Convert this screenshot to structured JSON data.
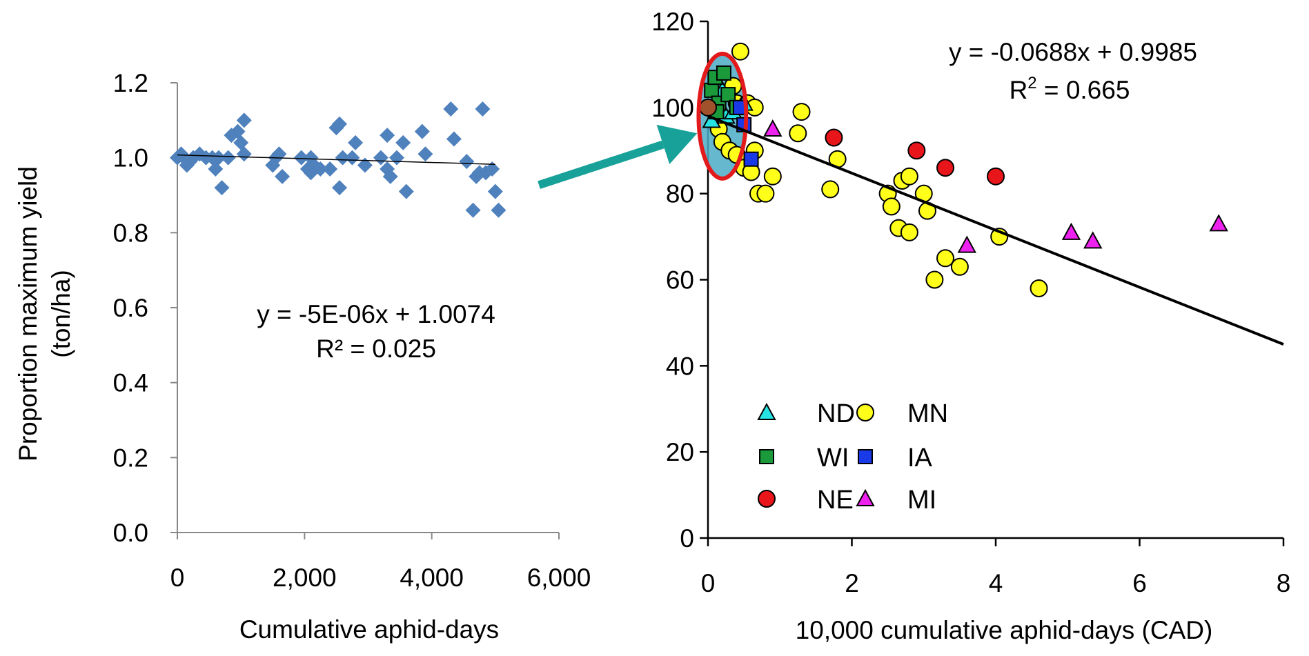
{
  "chart_data": [
    {
      "type": "scatter",
      "title": "",
      "ylabel": "Proportion maximum yield (ton/ha)",
      "ylabel_lines": [
        "Proportion maximum yield",
        "(ton/ha)"
      ],
      "xlabel": "Cumulative aphid-days",
      "xlim": [
        0,
        6000
      ],
      "ylim": [
        0,
        1.2
      ],
      "x_ticks": [
        0,
        2000,
        4000,
        6000
      ],
      "x_tick_labels": [
        "0",
        "2,000",
        "4,000",
        "6,000"
      ],
      "y_ticks": [
        0,
        0.2,
        0.4,
        0.6,
        0.8,
        1.0,
        1.2
      ],
      "y_tick_labels": [
        "0.0",
        "0.2",
        "0.4",
        "0.6",
        "0.8",
        "1.0",
        "1.2"
      ],
      "grid": false,
      "marker_color": "#4f81bd",
      "trendline": {
        "slope": -5e-06,
        "intercept": 1.0074,
        "x_range": [
          0,
          5000
        ]
      },
      "equation": "y = -5E-06x + 1.0074",
      "r_squared": "R² = 0.025",
      "points": [
        [
          0,
          1.0
        ],
        [
          60,
          1.01
        ],
        [
          100,
          1.0
        ],
        [
          150,
          0.98
        ],
        [
          200,
          0.99
        ],
        [
          250,
          1.0
        ],
        [
          350,
          1.01
        ],
        [
          450,
          1.0
        ],
        [
          550,
          1.0
        ],
        [
          600,
          0.97
        ],
        [
          650,
          1.0
        ],
        [
          700,
          0.92
        ],
        [
          800,
          1.0
        ],
        [
          850,
          1.06
        ],
        [
          950,
          1.07
        ],
        [
          1000,
          1.04
        ],
        [
          1050,
          1.1
        ],
        [
          1050,
          1.01
        ],
        [
          1500,
          0.98
        ],
        [
          1550,
          1.0
        ],
        [
          1600,
          1.01
        ],
        [
          1650,
          0.95
        ],
        [
          1950,
          1.0
        ],
        [
          2050,
          0.97
        ],
        [
          2100,
          1.0
        ],
        [
          2100,
          0.96
        ],
        [
          2150,
          0.98
        ],
        [
          2250,
          0.97
        ],
        [
          2400,
          0.97
        ],
        [
          2500,
          1.08
        ],
        [
          2550,
          1.09
        ],
        [
          2550,
          0.92
        ],
        [
          2600,
          1.0
        ],
        [
          2750,
          1.0
        ],
        [
          2800,
          1.04
        ],
        [
          2950,
          0.98
        ],
        [
          3200,
          1.0
        ],
        [
          3300,
          0.97
        ],
        [
          3300,
          1.06
        ],
        [
          3350,
          0.95
        ],
        [
          3450,
          1.0
        ],
        [
          3550,
          1.04
        ],
        [
          3600,
          0.91
        ],
        [
          3850,
          1.07
        ],
        [
          3900,
          1.01
        ],
        [
          4300,
          1.13
        ],
        [
          4350,
          1.05
        ],
        [
          4550,
          0.99
        ],
        [
          4650,
          0.86
        ],
        [
          4700,
          0.95
        ],
        [
          4750,
          0.96
        ],
        [
          4800,
          1.13
        ],
        [
          4850,
          0.96
        ],
        [
          4950,
          0.97
        ],
        [
          5000,
          0.91
        ],
        [
          5050,
          0.86
        ]
      ]
    },
    {
      "type": "scatter",
      "title": "",
      "ylabel": "",
      "xlabel": "10,000 cumulative aphid-days (CAD)",
      "xlim": [
        0,
        8
      ],
      "ylim": [
        0,
        120
      ],
      "x_ticks": [
        0,
        2,
        4,
        6,
        8
      ],
      "x_tick_labels": [
        "0",
        "2",
        "4",
        "6",
        "8"
      ],
      "y_ticks": [
        0,
        20,
        40,
        60,
        80,
        100,
        120
      ],
      "y_tick_labels": [
        "0",
        "20",
        "40",
        "60",
        "80",
        "100",
        "120"
      ],
      "grid": false,
      "legend_position": "bottom-left",
      "trendline": {
        "x": [
          0,
          8
        ],
        "y": [
          98,
          45
        ]
      },
      "equation": "y = -0.0688x + 0.9985",
      "r_squared_prefix": "R",
      "r_squared_sup": "2",
      "r_squared_value": " = 0.665",
      "highlight": {
        "type": "ellipse",
        "cx": 0.2,
        "cy": 98,
        "rx": 0.33,
        "ry": 14.5,
        "fill": "#4bacc6",
        "stroke": "#e31a1c"
      },
      "arrow": {
        "from_x": -2.35,
        "from_y": 82,
        "to_x": -0.15,
        "to_y": 94,
        "color": "#17a198"
      },
      "series": [
        {
          "name": "ND",
          "marker": "triangle",
          "color": "#25e3e3",
          "points": [
            [
              0.05,
              97
            ],
            [
              0.1,
              100
            ],
            [
              0.25,
              98
            ],
            [
              0.35,
              99
            ],
            [
              0.2,
              104
            ],
            [
              0.5,
              101
            ]
          ]
        },
        {
          "name": "WI",
          "marker": "square",
          "color": "#1a9a3a",
          "points": [
            [
              0.05,
              104
            ],
            [
              0.1,
              107
            ],
            [
              0.15,
              101
            ],
            [
              0.22,
              108
            ],
            [
              0.28,
              103
            ],
            [
              0.4,
              100
            ],
            [
              0.12,
              99
            ]
          ]
        },
        {
          "name": "NE",
          "marker": "circle",
          "color": "#e8161b",
          "points": [
            [
              1.75,
              93
            ],
            [
              2.9,
              90
            ],
            [
              3.3,
              86
            ],
            [
              4.0,
              84
            ]
          ]
        },
        {
          "name": "MN",
          "marker": "circle",
          "color": "#ffff1a",
          "points": [
            [
              0.45,
              113
            ],
            [
              0.35,
              105
            ],
            [
              0.4,
              101
            ],
            [
              0.55,
              101
            ],
            [
              0.65,
              100
            ],
            [
              0.15,
              95
            ],
            [
              0.2,
              92
            ],
            [
              0.3,
              90
            ],
            [
              0.4,
              89
            ],
            [
              0.5,
              86
            ],
            [
              0.6,
              85
            ],
            [
              0.65,
              90
            ],
            [
              0.7,
              80
            ],
            [
              0.8,
              80
            ],
            [
              0.9,
              84
            ],
            [
              1.25,
              94
            ],
            [
              1.3,
              99
            ],
            [
              1.7,
              81
            ],
            [
              1.8,
              88
            ],
            [
              2.5,
              80
            ],
            [
              2.55,
              77
            ],
            [
              2.65,
              72
            ],
            [
              2.7,
              83
            ],
            [
              2.8,
              84
            ],
            [
              2.8,
              71
            ],
            [
              3.0,
              80
            ],
            [
              3.05,
              76
            ],
            [
              3.15,
              60
            ],
            [
              3.3,
              65
            ],
            [
              3.5,
              63
            ],
            [
              4.05,
              70
            ],
            [
              4.6,
              58
            ]
          ]
        },
        {
          "name": "IA",
          "marker": "square",
          "color": "#1a3ae8",
          "points": [
            [
              0.45,
              100
            ],
            [
              0.5,
              96
            ],
            [
              0.6,
              88
            ]
          ]
        },
        {
          "name": "MI",
          "marker": "triangle",
          "color": "#ee22ee",
          "points": [
            [
              0.9,
              95
            ],
            [
              3.6,
              68
            ],
            [
              5.05,
              71
            ],
            [
              5.35,
              69
            ],
            [
              7.1,
              73
            ]
          ]
        },
        {
          "marker": "circle",
          "color": "#a0522d",
          "points": [
            [
              0.0,
              100
            ]
          ]
        }
      ]
    }
  ]
}
